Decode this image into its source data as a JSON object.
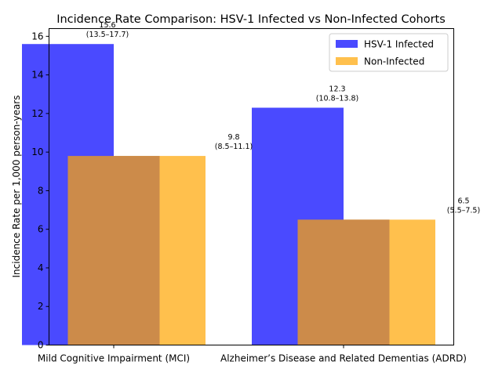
{
  "chart_data": {
    "type": "bar",
    "title": "Incidence Rate Comparison: HSV-1 Infected vs Non-Infected Cohorts",
    "xlabel": "",
    "ylabel": "Incidence Rate per 1,000 person-years",
    "ylim": [
      0,
      16.4
    ],
    "yticks": [
      0,
      2,
      4,
      6,
      8,
      10,
      12,
      14,
      16
    ],
    "ytick_labels": [
      "0",
      "2",
      "4",
      "6",
      "8",
      "10",
      "12",
      "14",
      "16"
    ],
    "categories": [
      "Mild Cognitive Impairment (MCI)",
      "Alzheimer’s Disease and Related Dementias (ADRD)"
    ],
    "series": [
      {
        "name": "HSV-1 Infected",
        "color": "#4a4aff",
        "values": [
          15.6,
          12.3
        ],
        "ci_labels": [
          "(13.5–17.7)",
          "(10.8–13.8)"
        ]
      },
      {
        "name": "Non-Infected",
        "color": "#ffc04d",
        "values": [
          9.8,
          6.5
        ],
        "ci_labels": [
          "(8.5–11.1)",
          "(5.5–7.5)"
        ]
      }
    ],
    "overlap_color": "#cc8b4a",
    "legend_position": "upper right",
    "grid": false
  }
}
